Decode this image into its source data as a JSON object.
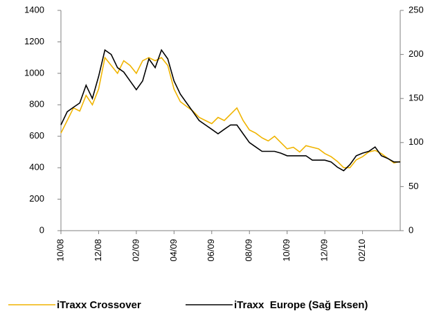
{
  "chart_data": {
    "type": "line",
    "categories": [
      "10/08",
      null,
      null,
      null,
      null,
      null,
      "12/08",
      null,
      null,
      null,
      null,
      null,
      "02/09",
      null,
      null,
      null,
      null,
      null,
      "04/09",
      null,
      null,
      null,
      null,
      null,
      "06/09",
      null,
      null,
      null,
      null,
      null,
      "08/09",
      null,
      null,
      null,
      null,
      null,
      "10/09",
      null,
      null,
      null,
      null,
      null,
      "12/09",
      null,
      null,
      null,
      null,
      null,
      "02/10",
      null,
      null,
      null,
      null,
      null,
      null
    ],
    "series": [
      {
        "name": "iTraxx Crossover",
        "color": "#f0b400",
        "values": [
          620,
          700,
          780,
          760,
          860,
          800,
          900,
          1100,
          1050,
          1000,
          1080,
          1050,
          1000,
          1080,
          1100,
          1080,
          1100,
          1050,
          900,
          820,
          790,
          760,
          720,
          700,
          680,
          720,
          700,
          740,
          780,
          700,
          640,
          620,
          590,
          570,
          600,
          560,
          520,
          530,
          500,
          540,
          530,
          520,
          490,
          470,
          440,
          400,
          400,
          450,
          470,
          500,
          510,
          490,
          460,
          430,
          440
        ]
      },
      {
        "name": "iTraxx  Europe (Sağ Eksen)",
        "color": "#000000",
        "axis": "y2",
        "values": [
          120,
          135,
          140,
          145,
          165,
          150,
          175,
          205,
          200,
          185,
          180,
          170,
          160,
          170,
          195,
          185,
          205,
          195,
          170,
          155,
          145,
          135,
          125,
          120,
          115,
          110,
          115,
          120,
          120,
          110,
          100,
          95,
          90,
          90,
          90,
          88,
          85,
          85,
          85,
          85,
          80,
          80,
          80,
          78,
          72,
          68,
          75,
          85,
          88,
          90,
          95,
          85,
          82,
          78,
          78
        ]
      }
    ],
    "ylim": [
      0,
      1400
    ],
    "yticks": [
      0,
      200,
      400,
      600,
      800,
      1000,
      1200,
      1400
    ],
    "y2lim": [
      0,
      250
    ],
    "y2ticks": [
      0,
      50,
      100,
      150,
      200,
      250
    ]
  }
}
